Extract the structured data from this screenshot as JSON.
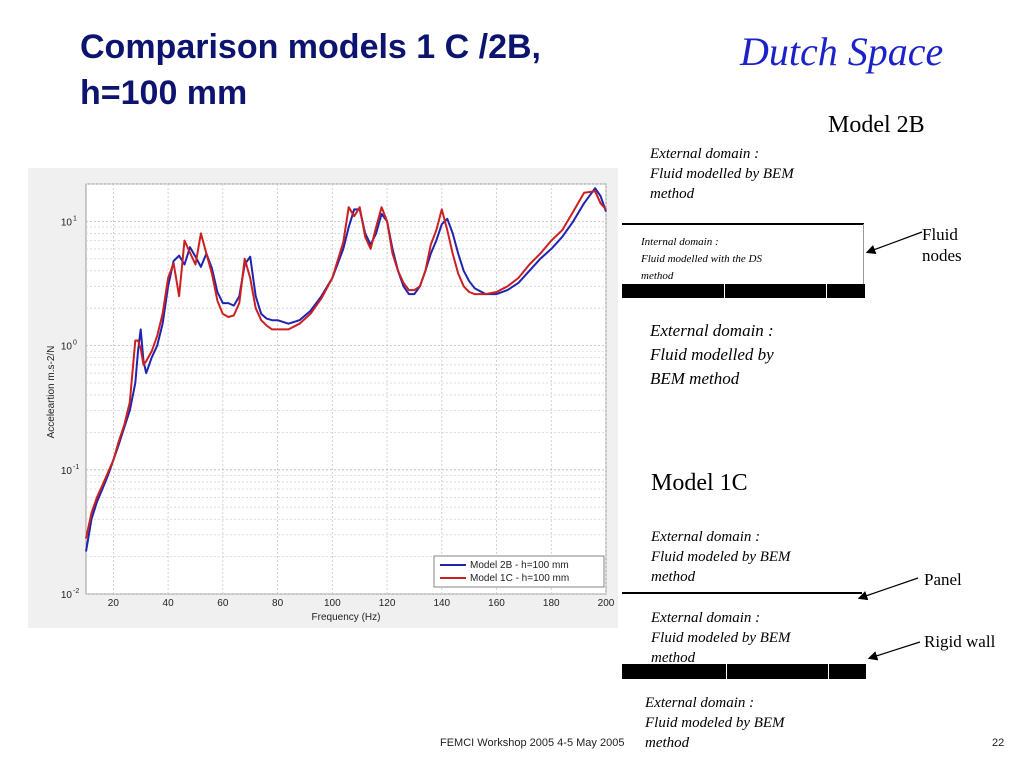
{
  "slide": {
    "title_line1": "Comparison models 1 C /2B,",
    "title_line2": "h=100 mm",
    "brand": "Dutch Space",
    "footer": "FEMCI Workshop 2005 4-5  May 2005",
    "page": "22"
  },
  "model2b": {
    "title": "Model 2B",
    "ext_top": [
      "External domain :",
      "Fluid modelled by BEM",
      "method"
    ],
    "internal": [
      "Internal domain :",
      "Fluid modelled with the DS",
      "method"
    ],
    "ext_bottom": [
      "External domain :",
      "Fluid modelled by",
      "BEM method"
    ],
    "arrow_label": [
      "Fluid",
      "nodes"
    ]
  },
  "model1c": {
    "title": "Model 1C",
    "ext_top": [
      "External domain :",
      "Fluid modeled by BEM",
      "method"
    ],
    "ext_mid": [
      "External domain :",
      "Fluid modeled by BEM",
      "method"
    ],
    "ext_bottom": [
      "External domain :",
      "Fluid modeled by BEM",
      "method"
    ],
    "panel_label": "Panel",
    "wall_label": "Rigid wall"
  },
  "chart_data": {
    "type": "line",
    "xlabel": "Frequency (Hz)",
    "ylabel": "Acceleartion m.s-2/N",
    "xlim": [
      10,
      200
    ],
    "ylim": [
      0.01,
      20
    ],
    "yscale": "log",
    "grid": true,
    "legend_position": "bottom-right",
    "xticks": [
      "20",
      "40",
      "60",
      "80",
      "100",
      "120",
      "140",
      "160",
      "180",
      "200"
    ],
    "yticks": [
      {
        "base": "10",
        "exp": "-2",
        "value": 0.01
      },
      {
        "base": "10",
        "exp": "-1",
        "value": 0.1
      },
      {
        "base": "10",
        "exp": "0",
        "value": 1
      },
      {
        "base": "10",
        "exp": "1",
        "value": 10
      }
    ],
    "series": [
      {
        "name": "Model 2B - h=100 mm",
        "color": "#1f24b0",
        "x": [
          10,
          12,
          14,
          16,
          18,
          20,
          22,
          24,
          26,
          28,
          29,
          30,
          31,
          32,
          34,
          36,
          38,
          40,
          42,
          44,
          46,
          48,
          50,
          52,
          54,
          56,
          58,
          60,
          62,
          64,
          66,
          68,
          70,
          72,
          74,
          76,
          78,
          80,
          84,
          88,
          92,
          96,
          100,
          104,
          106,
          108,
          110,
          112,
          114,
          116,
          118,
          120,
          122,
          124,
          126,
          128,
          130,
          132,
          134,
          136,
          138,
          140,
          142,
          144,
          146,
          148,
          150,
          152,
          156,
          160,
          164,
          168,
          172,
          176,
          180,
          184,
          188,
          192,
          196,
          198,
          200
        ],
        "y": [
          0.022,
          0.04,
          0.055,
          0.07,
          0.09,
          0.12,
          0.16,
          0.22,
          0.3,
          0.5,
          0.9,
          1.35,
          0.75,
          0.6,
          0.8,
          1.0,
          1.5,
          3.0,
          4.8,
          5.3,
          4.5,
          6.2,
          5.2,
          4.3,
          5.5,
          4.2,
          2.7,
          2.2,
          2.2,
          2.1,
          2.5,
          4.5,
          5.2,
          2.5,
          1.8,
          1.65,
          1.6,
          1.6,
          1.5,
          1.6,
          1.9,
          2.5,
          3.5,
          6.0,
          9.0,
          12.5,
          12.5,
          8.0,
          6.5,
          8.0,
          11.5,
          10.0,
          6.0,
          4.0,
          3.0,
          2.6,
          2.6,
          3.0,
          4.0,
          5.5,
          7.0,
          9.5,
          10.5,
          8.0,
          5.5,
          4.0,
          3.3,
          2.9,
          2.6,
          2.6,
          2.8,
          3.2,
          4.0,
          5.0,
          6.0,
          7.5,
          10.0,
          14.0,
          18.5,
          16.0,
          12.0
        ]
      },
      {
        "name": "Model 1C - h=100 mm",
        "color": "#cc2020",
        "x": [
          10,
          12,
          14,
          16,
          18,
          20,
          22,
          24,
          26,
          28,
          29,
          30,
          31,
          32,
          34,
          36,
          38,
          40,
          42,
          44,
          46,
          48,
          50,
          52,
          54,
          56,
          58,
          60,
          62,
          64,
          66,
          68,
          70,
          72,
          74,
          76,
          78,
          80,
          84,
          88,
          92,
          96,
          100,
          104,
          106,
          108,
          110,
          112,
          114,
          116,
          118,
          120,
          122,
          124,
          126,
          128,
          130,
          132,
          134,
          136,
          138,
          140,
          142,
          144,
          146,
          148,
          150,
          152,
          156,
          160,
          164,
          168,
          172,
          176,
          180,
          184,
          188,
          192,
          196,
          198,
          200
        ],
        "y": [
          0.028,
          0.045,
          0.06,
          0.075,
          0.095,
          0.12,
          0.17,
          0.23,
          0.35,
          1.1,
          1.1,
          0.95,
          0.7,
          0.75,
          0.9,
          1.2,
          1.8,
          3.5,
          4.6,
          2.5,
          7.0,
          5.6,
          4.5,
          8.0,
          5.5,
          3.8,
          2.3,
          1.8,
          1.7,
          1.75,
          2.2,
          5.0,
          3.5,
          2.0,
          1.6,
          1.45,
          1.35,
          1.35,
          1.35,
          1.5,
          1.8,
          2.4,
          3.5,
          6.8,
          13.0,
          11.0,
          13.0,
          7.5,
          6.0,
          9.0,
          13.0,
          10.0,
          5.5,
          4.0,
          3.2,
          2.8,
          2.8,
          3.0,
          4.0,
          6.5,
          8.5,
          12.5,
          8.5,
          5.5,
          3.8,
          3.0,
          2.7,
          2.6,
          2.6,
          2.7,
          3.0,
          3.5,
          4.5,
          5.5,
          7.0,
          8.5,
          12.0,
          17.0,
          17.5,
          14.0,
          12.5
        ]
      }
    ]
  }
}
